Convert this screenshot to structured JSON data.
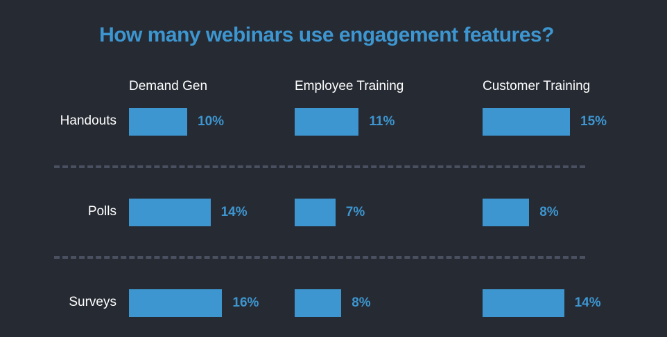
{
  "chart_data": {
    "type": "bar",
    "title": "How many webinars use engagement features?",
    "columns": [
      "Demand Gen",
      "Employee Training",
      "Customer Training"
    ],
    "rows": [
      "Handouts",
      "Polls",
      "Surveys"
    ],
    "series": [
      {
        "name": "Demand Gen",
        "values": [
          10,
          14,
          16
        ],
        "labels": [
          "10%",
          "14%",
          "16%"
        ]
      },
      {
        "name": "Employee Training",
        "values": [
          11,
          7,
          8
        ],
        "labels": [
          "11%",
          "7%",
          "8%"
        ]
      },
      {
        "name": "Customer Training",
        "values": [
          15,
          8,
          14
        ],
        "labels": [
          "15%",
          "8%",
          "14%"
        ]
      }
    ],
    "unit": "%",
    "grid": false,
    "colors": {
      "bar": "#3d96d0",
      "background": "#262a33",
      "divider": "#4a5060",
      "text": "#ffffff"
    }
  }
}
